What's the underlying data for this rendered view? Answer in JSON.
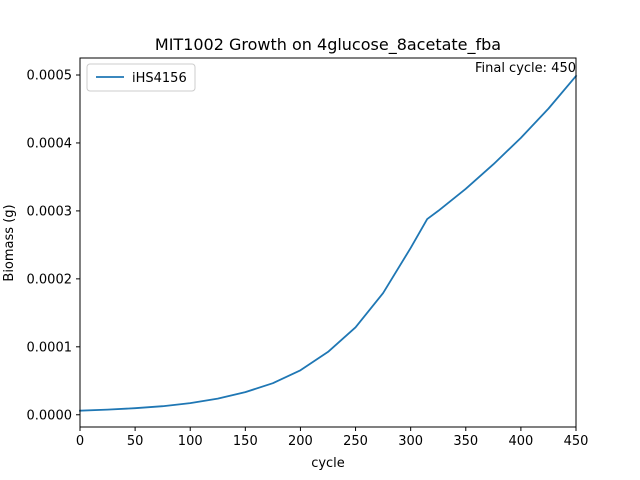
{
  "chart_data": {
    "type": "line",
    "title": "MIT1002 Growth on 4glucose_8acetate_fba",
    "xlabel": "cycle",
    "ylabel": "Biomass (g)",
    "xlim": [
      0,
      450
    ],
    "ylim": [
      -1.8e-05,
      0.000525
    ],
    "xticks": [
      0,
      50,
      100,
      150,
      200,
      250,
      300,
      350,
      400,
      450
    ],
    "xtick_labels": [
      "0",
      "50",
      "100",
      "150",
      "200",
      "250",
      "300",
      "350",
      "400",
      "450"
    ],
    "yticks": [
      0,
      0.0001,
      0.0002,
      0.0003,
      0.0004,
      0.0005
    ],
    "ytick_labels": [
      "0.0000",
      "0.0001",
      "0.0002",
      "0.0003",
      "0.0004",
      "0.0005"
    ],
    "grid": false,
    "legend_position": "upper-left",
    "annotation": "Final cycle: 450",
    "series": [
      {
        "name": "iHS4156",
        "color": "#1f77b4",
        "x": [
          0,
          25,
          50,
          75,
          100,
          125,
          150,
          175,
          200,
          225,
          250,
          275,
          300,
          315,
          325,
          350,
          375,
          400,
          425,
          450
        ],
        "y": [
          6e-06,
          7.6e-06,
          9.7e-06,
          1.26e-05,
          1.71e-05,
          2.37e-05,
          3.33e-05,
          4.65e-05,
          6.55e-05,
          9.25e-05,
          0.0001287,
          0.0001791,
          0.0002455,
          0.000288,
          0.0003,
          0.0003325,
          0.0003685,
          0.0004075,
          0.0004505,
          0.0004985
        ]
      }
    ]
  }
}
